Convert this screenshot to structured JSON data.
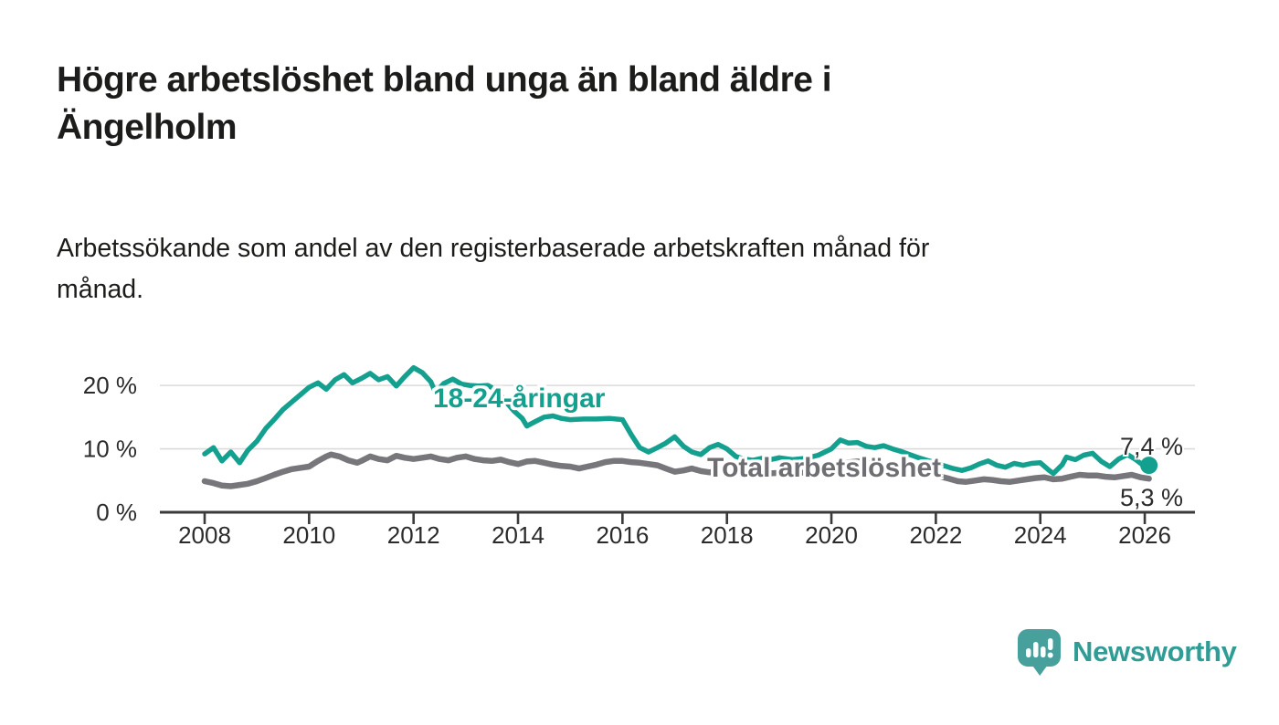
{
  "header": {
    "title_lines": [
      "Högre arbetslöshet bland unga än bland äldre i",
      "Ängelholm"
    ],
    "title": "Högre arbetslöshet bland unga än bland äldre i Ängelholm",
    "subtitle_lines": [
      "Arbetssökande som andel av den registerbaserade arbetskraften månad för",
      "månad."
    ],
    "subtitle": "Arbetssökande som andel av den registerbaserade arbetskraften månad för månad."
  },
  "colors": {
    "young_line": "#14a08f",
    "total_line": "#77777b",
    "axis": "#3a3a3a",
    "gridline": "#dbdbdb",
    "tick_text": "#2b2b2b",
    "logo_bubble": "#47a09b",
    "logo_text": "#2f9c96"
  },
  "footer": {
    "brand": "Newsworthy"
  },
  "chart_data": {
    "type": "line",
    "title": "Högre arbetslöshet bland unga än bland äldre i Ängelholm",
    "xlabel": "",
    "ylabel": "Arbetssökande som andel av den registerbaserade arbetskraften (%)",
    "grid": "horizontal-only",
    "legend_position": "inline-labels",
    "xlim": [
      2007.1,
      2027.0
    ],
    "ylim": [
      0,
      24
    ],
    "x_ticks": [
      2008,
      2010,
      2012,
      2014,
      2016,
      2018,
      2020,
      2022,
      2024,
      2026
    ],
    "y_ticks": [
      {
        "value": 0,
        "label": "0 %"
      },
      {
        "value": 10,
        "label": "10 %"
      },
      {
        "value": 20,
        "label": "20 %"
      }
    ],
    "series": [
      {
        "name": "Total arbetslöshet",
        "label_color": "#6f6f73",
        "line_color": "#77777b",
        "end_label": "5,3 %",
        "end_value": 5.3,
        "end_dot": false,
        "points": [
          [
            2008.0,
            4.9
          ],
          [
            2008.17,
            4.6
          ],
          [
            2008.33,
            4.2
          ],
          [
            2008.5,
            4.1
          ],
          [
            2008.67,
            4.3
          ],
          [
            2008.83,
            4.5
          ],
          [
            2009.0,
            4.9
          ],
          [
            2009.17,
            5.4
          ],
          [
            2009.33,
            5.9
          ],
          [
            2009.5,
            6.4
          ],
          [
            2009.67,
            6.8
          ],
          [
            2009.83,
            7.0
          ],
          [
            2010.0,
            7.2
          ],
          [
            2010.17,
            8.1
          ],
          [
            2010.33,
            8.8
          ],
          [
            2010.42,
            9.1
          ],
          [
            2010.58,
            8.8
          ],
          [
            2010.75,
            8.2
          ],
          [
            2010.92,
            7.8
          ],
          [
            2011.0,
            8.1
          ],
          [
            2011.17,
            8.8
          ],
          [
            2011.33,
            8.4
          ],
          [
            2011.5,
            8.2
          ],
          [
            2011.67,
            8.9
          ],
          [
            2011.83,
            8.6
          ],
          [
            2012.0,
            8.4
          ],
          [
            2012.17,
            8.6
          ],
          [
            2012.33,
            8.8
          ],
          [
            2012.5,
            8.4
          ],
          [
            2012.67,
            8.2
          ],
          [
            2012.83,
            8.6
          ],
          [
            2013.0,
            8.8
          ],
          [
            2013.17,
            8.4
          ],
          [
            2013.33,
            8.2
          ],
          [
            2013.5,
            8.1
          ],
          [
            2013.67,
            8.3
          ],
          [
            2013.83,
            7.9
          ],
          [
            2014.0,
            7.6
          ],
          [
            2014.17,
            8.0
          ],
          [
            2014.33,
            8.1
          ],
          [
            2014.5,
            7.8
          ],
          [
            2014.67,
            7.5
          ],
          [
            2014.83,
            7.3
          ],
          [
            2015.0,
            7.2
          ],
          [
            2015.17,
            6.9
          ],
          [
            2015.33,
            7.2
          ],
          [
            2015.5,
            7.5
          ],
          [
            2015.67,
            7.9
          ],
          [
            2015.83,
            8.1
          ],
          [
            2016.0,
            8.1
          ],
          [
            2016.17,
            7.9
          ],
          [
            2016.33,
            7.8
          ],
          [
            2016.5,
            7.6
          ],
          [
            2016.67,
            7.4
          ],
          [
            2016.83,
            6.9
          ],
          [
            2017.0,
            6.4
          ],
          [
            2017.17,
            6.6
          ],
          [
            2017.33,
            6.9
          ],
          [
            2017.5,
            6.5
          ],
          [
            2017.67,
            6.3
          ],
          [
            2017.83,
            6.6
          ],
          [
            2018.0,
            6.5
          ],
          [
            2018.25,
            6.2
          ],
          [
            2018.5,
            6.0
          ],
          [
            2018.75,
            6.1
          ],
          [
            2019.0,
            6.2
          ],
          [
            2019.25,
            6.1
          ],
          [
            2019.5,
            6.3
          ],
          [
            2019.75,
            6.6
          ],
          [
            2020.0,
            7.0
          ],
          [
            2020.25,
            7.8
          ],
          [
            2020.5,
            8.0
          ],
          [
            2020.75,
            7.7
          ],
          [
            2021.0,
            7.4
          ],
          [
            2021.25,
            7.0
          ],
          [
            2021.5,
            6.6
          ],
          [
            2021.75,
            6.1
          ],
          [
            2022.0,
            5.8
          ],
          [
            2022.25,
            5.3
          ],
          [
            2022.42,
            4.9
          ],
          [
            2022.58,
            4.8
          ],
          [
            2022.75,
            5.0
          ],
          [
            2022.92,
            5.2
          ],
          [
            2023.08,
            5.1
          ],
          [
            2023.25,
            4.9
          ],
          [
            2023.42,
            4.8
          ],
          [
            2023.58,
            5.0
          ],
          [
            2023.75,
            5.2
          ],
          [
            2023.92,
            5.4
          ],
          [
            2024.08,
            5.5
          ],
          [
            2024.25,
            5.2
          ],
          [
            2024.42,
            5.3
          ],
          [
            2024.58,
            5.6
          ],
          [
            2024.75,
            5.9
          ],
          [
            2024.92,
            5.8
          ],
          [
            2025.08,
            5.8
          ],
          [
            2025.25,
            5.6
          ],
          [
            2025.42,
            5.5
          ],
          [
            2025.58,
            5.7
          ],
          [
            2025.75,
            5.9
          ],
          [
            2025.92,
            5.5
          ],
          [
            2026.08,
            5.3
          ]
        ]
      },
      {
        "name": "18-24-åringar",
        "label_color": "#14a08f",
        "line_color": "#14a08f",
        "end_label": "7,4 %",
        "end_value": 7.4,
        "end_dot": true,
        "points": [
          [
            2008.0,
            9.2
          ],
          [
            2008.17,
            10.2
          ],
          [
            2008.33,
            8.1
          ],
          [
            2008.5,
            9.5
          ],
          [
            2008.67,
            7.8
          ],
          [
            2008.83,
            9.8
          ],
          [
            2009.0,
            11.2
          ],
          [
            2009.17,
            13.2
          ],
          [
            2009.33,
            14.6
          ],
          [
            2009.5,
            16.2
          ],
          [
            2009.67,
            17.4
          ],
          [
            2009.83,
            18.5
          ],
          [
            2010.0,
            19.7
          ],
          [
            2010.17,
            20.4
          ],
          [
            2010.33,
            19.4
          ],
          [
            2010.5,
            20.9
          ],
          [
            2010.67,
            21.7
          ],
          [
            2010.83,
            20.4
          ],
          [
            2011.0,
            21.1
          ],
          [
            2011.17,
            21.9
          ],
          [
            2011.33,
            20.9
          ],
          [
            2011.5,
            21.4
          ],
          [
            2011.67,
            19.9
          ],
          [
            2011.83,
            21.4
          ],
          [
            2012.0,
            22.8
          ],
          [
            2012.17,
            22.0
          ],
          [
            2012.33,
            20.6
          ],
          [
            2012.42,
            18.9
          ],
          [
            2012.58,
            20.3
          ],
          [
            2012.75,
            21.0
          ],
          [
            2012.92,
            20.2
          ],
          [
            2013.08,
            20.0
          ],
          [
            2013.25,
            19.9
          ],
          [
            2013.42,
            20.0
          ],
          [
            2013.58,
            19.3
          ],
          [
            2013.75,
            17.6
          ],
          [
            2013.92,
            16.0
          ],
          [
            2014.08,
            14.8
          ],
          [
            2014.17,
            13.6
          ],
          [
            2014.33,
            14.3
          ],
          [
            2014.5,
            15.0
          ],
          [
            2014.67,
            15.2
          ],
          [
            2014.83,
            14.8
          ],
          [
            2015.0,
            14.6
          ],
          [
            2015.25,
            14.7
          ],
          [
            2015.5,
            14.7
          ],
          [
            2015.75,
            14.8
          ],
          [
            2016.0,
            14.6
          ],
          [
            2016.17,
            12.2
          ],
          [
            2016.33,
            10.2
          ],
          [
            2016.5,
            9.5
          ],
          [
            2016.67,
            10.2
          ],
          [
            2016.83,
            10.9
          ],
          [
            2017.0,
            11.9
          ],
          [
            2017.17,
            10.4
          ],
          [
            2017.33,
            9.5
          ],
          [
            2017.5,
            9.1
          ],
          [
            2017.67,
            10.2
          ],
          [
            2017.83,
            10.7
          ],
          [
            2018.0,
            10.0
          ],
          [
            2018.17,
            8.8
          ],
          [
            2018.33,
            8.4
          ],
          [
            2018.5,
            8.2
          ],
          [
            2018.67,
            8.5
          ],
          [
            2018.83,
            8.3
          ],
          [
            2019.0,
            8.6
          ],
          [
            2019.25,
            8.3
          ],
          [
            2019.5,
            8.5
          ],
          [
            2019.75,
            9.0
          ],
          [
            2020.0,
            10.0
          ],
          [
            2020.17,
            11.4
          ],
          [
            2020.33,
            10.9
          ],
          [
            2020.5,
            11.0
          ],
          [
            2020.67,
            10.4
          ],
          [
            2020.83,
            10.2
          ],
          [
            2021.0,
            10.5
          ],
          [
            2021.17,
            10.0
          ],
          [
            2021.33,
            9.6
          ],
          [
            2021.5,
            9.1
          ],
          [
            2021.67,
            8.6
          ],
          [
            2021.83,
            8.2
          ],
          [
            2022.0,
            7.8
          ],
          [
            2022.17,
            7.3
          ],
          [
            2022.33,
            6.9
          ],
          [
            2022.5,
            6.6
          ],
          [
            2022.67,
            7.0
          ],
          [
            2022.83,
            7.6
          ],
          [
            2023.0,
            8.1
          ],
          [
            2023.17,
            7.4
          ],
          [
            2023.33,
            7.1
          ],
          [
            2023.5,
            7.7
          ],
          [
            2023.67,
            7.4
          ],
          [
            2023.83,
            7.7
          ],
          [
            2024.0,
            7.8
          ],
          [
            2024.17,
            6.6
          ],
          [
            2024.25,
            6.1
          ],
          [
            2024.42,
            7.5
          ],
          [
            2024.5,
            8.7
          ],
          [
            2024.67,
            8.3
          ],
          [
            2024.83,
            9.0
          ],
          [
            2025.0,
            9.3
          ],
          [
            2025.17,
            8.0
          ],
          [
            2025.33,
            7.2
          ],
          [
            2025.5,
            8.4
          ],
          [
            2025.67,
            9.1
          ],
          [
            2025.83,
            8.3
          ],
          [
            2026.0,
            7.2
          ],
          [
            2026.08,
            7.4
          ]
        ]
      }
    ]
  }
}
